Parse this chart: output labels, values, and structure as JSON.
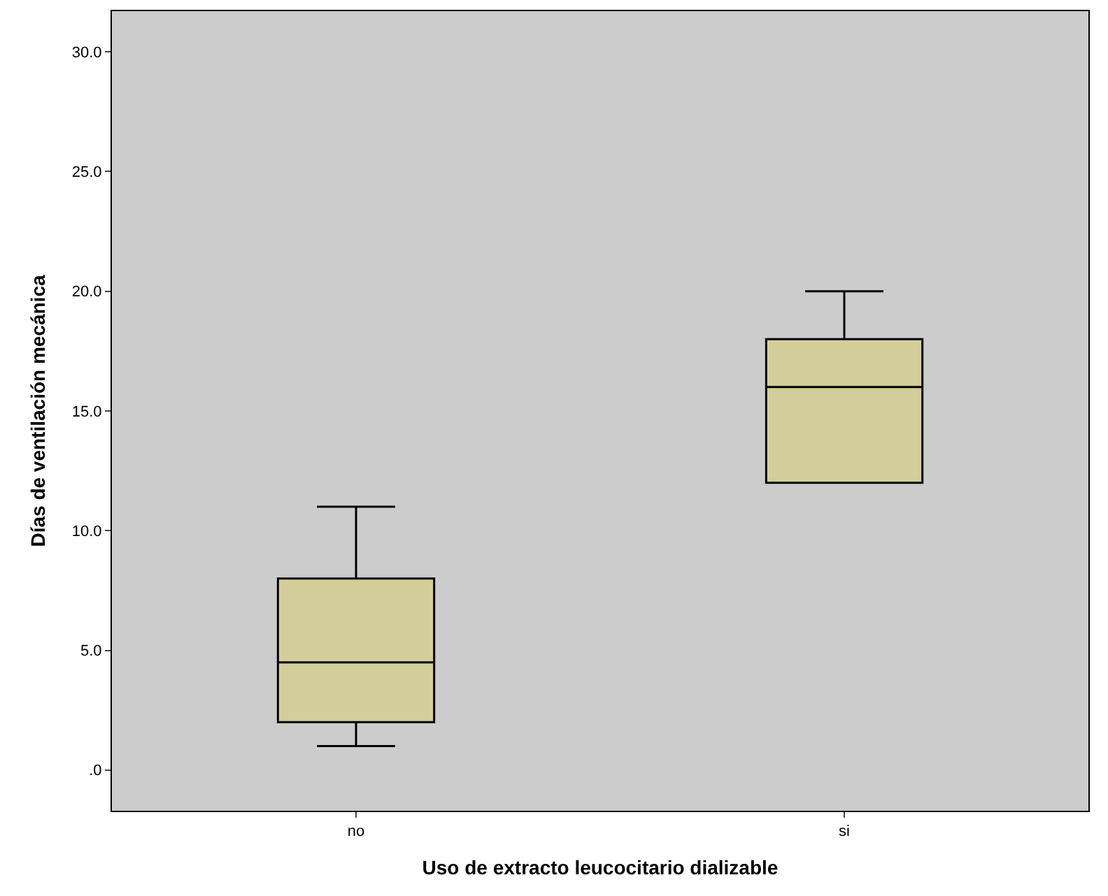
{
  "chart_data": {
    "type": "box",
    "xlabel": "Uso de extracto leucocitario dializable",
    "ylabel": "Días de ventilación mecánica",
    "categories": [
      "no",
      "si"
    ],
    "boxes": [
      {
        "low": 1,
        "q1": 2,
        "median": 4.5,
        "q3": 8,
        "high": 11
      },
      {
        "low": 12,
        "q1": 12,
        "median": 16,
        "q3": 18,
        "high": 20
      }
    ],
    "color": "#d3ce99",
    "ylim": [
      -1.7,
      31.7
    ],
    "yticks": [
      {
        "value": 0,
        "label": ".0"
      },
      {
        "value": 5,
        "label": "5.0"
      },
      {
        "value": 10,
        "label": "10.0"
      },
      {
        "value": 15,
        "label": "15.0"
      },
      {
        "value": 20,
        "label": "20.0"
      },
      {
        "value": 25,
        "label": "25.0"
      },
      {
        "value": 30,
        "label": "30.0"
      }
    ],
    "grid": false
  }
}
